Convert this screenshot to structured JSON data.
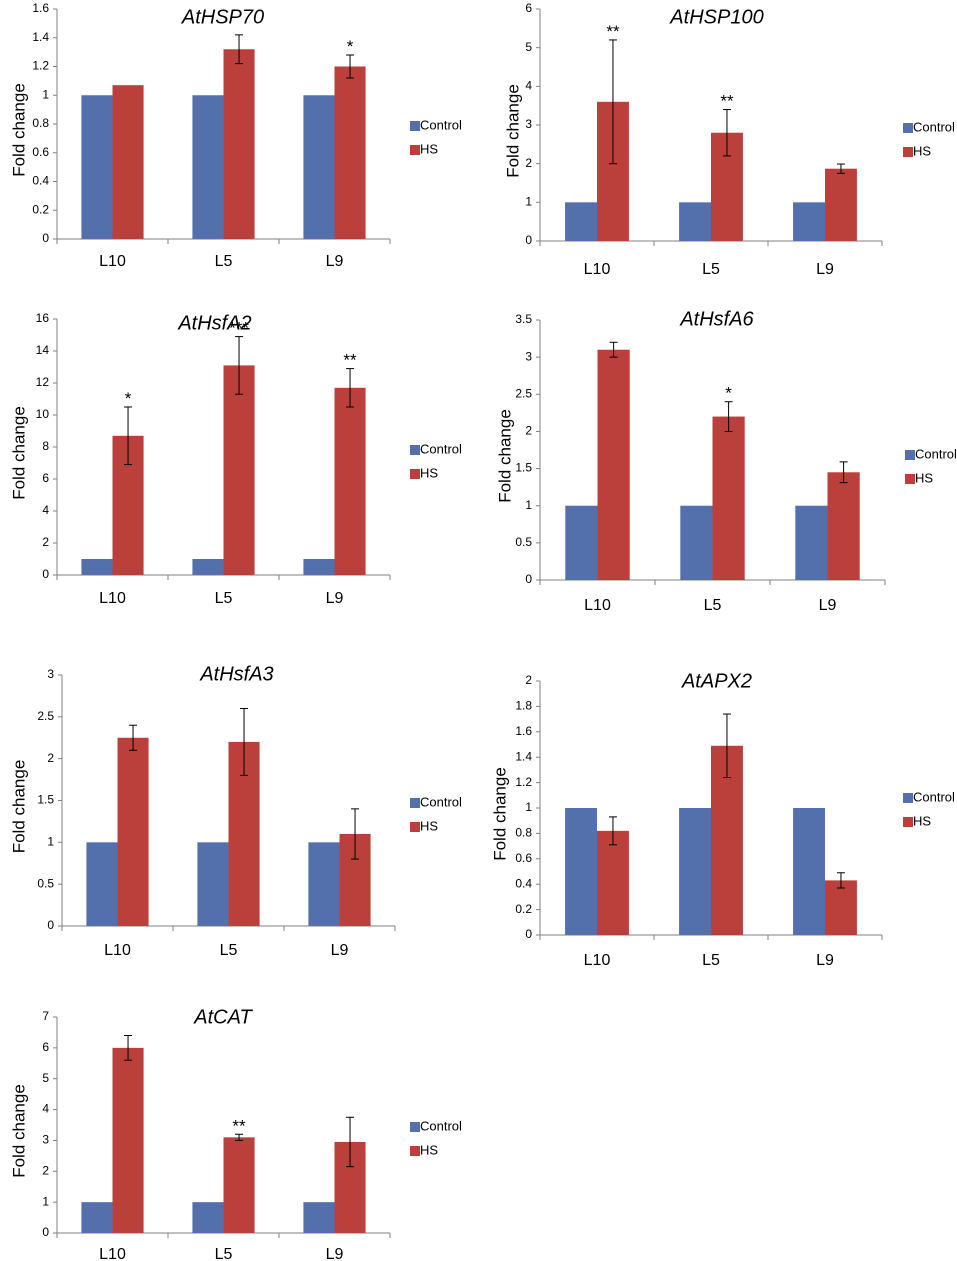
{
  "figure": {
    "label": "Gene expression fold change under heat stress"
  },
  "colors": {
    "control": "#5470ac",
    "hs": "#bb3f3b",
    "axis": "#808080",
    "text": "#000000"
  },
  "chart_data": [
    {
      "type": "bar",
      "title": "AtHSP70",
      "ylabel": "Fold change",
      "categories": [
        "L10",
        "L5",
        "L9"
      ],
      "ylim": [
        0,
        1.6
      ],
      "yticks": [
        0,
        0.2,
        0.4,
        0.6,
        0.8,
        1,
        1.2,
        1.4,
        1.6
      ],
      "ytick_labels": [
        "0",
        "0.2",
        "0.4",
        "0.6",
        "0.8",
        "1",
        "1.2",
        "1.4",
        "1.6"
      ],
      "series": [
        {
          "name": "Control",
          "values": [
            1,
            1,
            1
          ],
          "errors": [
            0,
            0,
            0
          ]
        },
        {
          "name": "HS",
          "values": [
            1.07,
            1.32,
            1.2
          ],
          "errors": [
            0,
            0.1,
            0.08
          ]
        }
      ],
      "significance": [
        "",
        "",
        "*"
      ],
      "legend": [
        "Control",
        "HS"
      ]
    },
    {
      "type": "bar",
      "title": "AtHSP100",
      "ylabel": "Fold change",
      "categories": [
        "L10",
        "L5",
        "L9"
      ],
      "ylim": [
        0,
        6
      ],
      "yticks": [
        0,
        1,
        2,
        3,
        4,
        5,
        6
      ],
      "ytick_labels": [
        "0",
        "1",
        "2",
        "3",
        "4",
        "5",
        "6"
      ],
      "series": [
        {
          "name": "Control",
          "values": [
            1,
            1,
            1
          ],
          "errors": [
            0,
            0,
            0
          ]
        },
        {
          "name": "HS",
          "values": [
            3.6,
            2.8,
            1.87
          ],
          "errors": [
            1.6,
            0.6,
            0.12
          ]
        }
      ],
      "significance": [
        "**",
        "**",
        ""
      ],
      "legend": [
        "Control",
        "HS"
      ]
    },
    {
      "type": "bar",
      "title": "AtHsfA2",
      "ylabel": "Fold change",
      "categories": [
        "L10",
        "L5",
        "L9"
      ],
      "ylim": [
        0,
        16
      ],
      "yticks": [
        0,
        2,
        4,
        6,
        8,
        10,
        12,
        14,
        16
      ],
      "ytick_labels": [
        "0",
        "2",
        "4",
        "6",
        "8",
        "10",
        "12",
        "14",
        "16"
      ],
      "series": [
        {
          "name": "Control",
          "values": [
            1,
            1,
            1
          ],
          "errors": [
            0,
            0,
            0
          ]
        },
        {
          "name": "HS",
          "values": [
            8.7,
            13.1,
            11.7
          ],
          "errors": [
            1.8,
            1.8,
            1.2
          ]
        }
      ],
      "significance": [
        "*",
        "***",
        "**"
      ],
      "legend": [
        "Control",
        "HS"
      ]
    },
    {
      "type": "bar",
      "title": "AtHsfA6",
      "ylabel": "Fold change",
      "categories": [
        "L10",
        "L5",
        "L9"
      ],
      "ylim": [
        0,
        3.5
      ],
      "yticks": [
        0,
        0.5,
        1,
        1.5,
        2,
        2.5,
        3,
        3.5
      ],
      "ytick_labels": [
        "0",
        "0.5",
        "1",
        "1.5",
        "2",
        "2.5",
        "3",
        "3.5"
      ],
      "series": [
        {
          "name": "Control",
          "values": [
            1,
            1,
            1
          ],
          "errors": [
            0,
            0,
            0
          ]
        },
        {
          "name": "HS",
          "values": [
            3.1,
            2.2,
            1.45
          ],
          "errors": [
            0.1,
            0.2,
            0.14
          ]
        }
      ],
      "significance": [
        "",
        "*",
        ""
      ],
      "legend": [
        "Control",
        "HS"
      ]
    },
    {
      "type": "bar",
      "title": "AtHsfA3",
      "ylabel": "Fold change",
      "categories": [
        "L10",
        "L5",
        "L9"
      ],
      "ylim": [
        0,
        3
      ],
      "yticks": [
        0,
        0.5,
        1,
        1.5,
        2,
        2.5,
        3
      ],
      "ytick_labels": [
        "0",
        "0.5",
        "1",
        "1.5",
        "2",
        "2.5",
        "3"
      ],
      "series": [
        {
          "name": "Control",
          "values": [
            1,
            1,
            1
          ],
          "errors": [
            0,
            0,
            0
          ]
        },
        {
          "name": "HS",
          "values": [
            2.25,
            2.2,
            1.1
          ],
          "errors": [
            0.15,
            0.4,
            0.3
          ]
        }
      ],
      "significance": [
        "",
        "",
        ""
      ],
      "legend": [
        "Control",
        "HS"
      ]
    },
    {
      "type": "bar",
      "title": "AtAPX2",
      "ylabel": "Fold change",
      "categories": [
        "L10",
        "L5",
        "L9"
      ],
      "ylim": [
        0,
        2
      ],
      "yticks": [
        0,
        0.2,
        0.4,
        0.6,
        0.8,
        1,
        1.2,
        1.4,
        1.6,
        1.8,
        2
      ],
      "ytick_labels": [
        "0",
        "0.2",
        "0.4",
        "0.6",
        "0.8",
        "1",
        "1.2",
        "1.4",
        "1.6",
        "1.8",
        "2"
      ],
      "series": [
        {
          "name": "Control",
          "values": [
            1,
            1,
            1
          ],
          "errors": [
            0,
            0,
            0
          ]
        },
        {
          "name": "HS",
          "values": [
            0.82,
            1.49,
            0.43
          ],
          "errors": [
            0.11,
            0.25,
            0.06
          ]
        }
      ],
      "significance": [
        "",
        "",
        ""
      ],
      "legend": [
        "Control",
        "HS"
      ]
    },
    {
      "type": "bar",
      "title": "AtCAT",
      "ylabel": "Fold change",
      "categories": [
        "L10",
        "L5",
        "L9"
      ],
      "ylim": [
        0,
        7
      ],
      "yticks": [
        0,
        1,
        2,
        3,
        4,
        5,
        6,
        7
      ],
      "ytick_labels": [
        "0",
        "1",
        "2",
        "3",
        "4",
        "5",
        "6",
        "7"
      ],
      "series": [
        {
          "name": "Control",
          "values": [
            1,
            1,
            1
          ],
          "errors": [
            0,
            0,
            0
          ]
        },
        {
          "name": "HS",
          "values": [
            6,
            3.1,
            2.95
          ],
          "errors": [
            0.4,
            0.1,
            0.8
          ]
        }
      ],
      "significance": [
        "",
        "**",
        ""
      ],
      "legend": [
        "Control",
        "HS"
      ]
    }
  ]
}
